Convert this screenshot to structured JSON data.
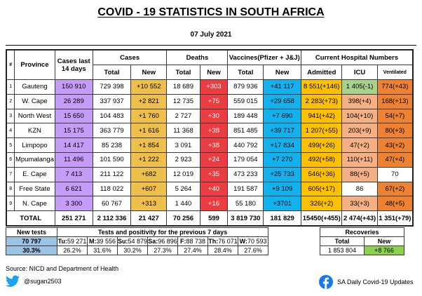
{
  "title": "COVID - 19 STATISTICS IN SOUTH AFRICA",
  "date": "07 July 2021",
  "headers": {
    "num": "#",
    "province": "Province",
    "cases14": "Cases last 14 days",
    "cases": "Cases",
    "deaths": "Deaths",
    "vaccines": "Vaccines(Pfizer + J&J)",
    "hospital": "Current Hospital Numbers",
    "total": "Total",
    "new": "New",
    "admitted": "Admitted",
    "icu": "ICU",
    "ventilated": "Ventilated"
  },
  "rows": [
    {
      "num": "1",
      "province": "Gauteng",
      "cases14": "150 910",
      "cases_total": "729 398",
      "cases_new": "+10 552",
      "deaths_total": "18 689",
      "deaths_new": "+303",
      "vacc_total": "879 936",
      "vacc_new": "+41 117",
      "admitted": "8 551(+146)",
      "icu": "1 405(-1)",
      "ventilated": "774(+43)"
    },
    {
      "num": "2",
      "province": "W. Cape",
      "cases14": "26 289",
      "cases_total": "337 937",
      "cases_new": "+2 821",
      "deaths_total": "12 735",
      "deaths_new": "+75",
      "vacc_total": "559 015",
      "vacc_new": "+29 658",
      "admitted": "2 283(+73)",
      "icu": "398(+4)",
      "ventilated": "168(+13)"
    },
    {
      "num": "3",
      "province": "North West",
      "cases14": "15 650",
      "cases_total": "104 483",
      "cases_new": "+1 760",
      "deaths_total": "2 727",
      "deaths_new": "+30",
      "vacc_total": "189 448",
      "vacc_new": "+7 690",
      "admitted": "941(+42)",
      "icu": "104(+10)",
      "ventilated": "54(+7)"
    },
    {
      "num": "4",
      "province": "KZN",
      "cases14": "15 175",
      "cases_total": "363 779",
      "cases_new": "+1 616",
      "deaths_total": "11 368",
      "deaths_new": "+38",
      "vacc_total": "851 485",
      "vacc_new": "+39 717",
      "admitted": "1 207(+55)",
      "icu": "203(+9)",
      "ventilated": "80(+3)"
    },
    {
      "num": "5",
      "province": "Limpopo",
      "cases14": "14 417",
      "cases_total": "85 238",
      "cases_new": "+1 854",
      "deaths_total": "3 091",
      "deaths_new": "+38",
      "vacc_total": "440 792",
      "vacc_new": "+17 834",
      "admitted": "499(+26)",
      "icu": "47(+2)",
      "ventilated": "43(+2)"
    },
    {
      "num": "6",
      "province": "Mpumalanga",
      "cases14": "11 496",
      "cases_total": "101 590",
      "cases_new": "+1 222",
      "deaths_total": "2 923",
      "deaths_new": "+24",
      "vacc_total": "179 054",
      "vacc_new": "+7 270",
      "admitted": "492(+58)",
      "icu": "110(+11)",
      "ventilated": "47(+4)"
    },
    {
      "num": "7",
      "province": "E. Cape",
      "cases14": "7 413",
      "cases_total": "211 122",
      "cases_new": "+682",
      "deaths_total": "12 019",
      "deaths_new": "+35",
      "vacc_total": "473 233",
      "vacc_new": "+25 733",
      "admitted": "546(+36)",
      "icu": "88(+5)",
      "ventilated": "70"
    },
    {
      "num": "8",
      "province": "Free State",
      "cases14": "6 621",
      "cases_total": "118 022",
      "cases_new": "+607",
      "deaths_total": "5 264",
      "deaths_new": "+40",
      "vacc_total": "191 587",
      "vacc_new": "+9 109",
      "admitted": "605(+17)",
      "icu": "86",
      "ventilated": "67(+2)"
    },
    {
      "num": "9",
      "province": "N. Cape",
      "cases14": "3 300",
      "cases_total": "60 767",
      "cases_new": "+313",
      "deaths_total": "1 440",
      "deaths_new": "+16",
      "vacc_total": "55 180",
      "vacc_new": "+3701",
      "admitted": "326(+2)",
      "icu": "33(+3)",
      "ventilated": "48(+5)"
    }
  ],
  "totals": {
    "label": "TOTAL",
    "cases14": "251 271",
    "cases_total": "2 112 336",
    "cases_new": "21 427",
    "deaths_total": "70 256",
    "deaths_new": "599",
    "vacc_total": "3 819 730",
    "vacc_new": "181 829",
    "admitted": "15450(+455)",
    "icu": "2 474(+43)",
    "ventilated": "1 351(+79)"
  },
  "tests": {
    "new_label": "New tests",
    "new_value": "70 797",
    "new_positivity": "30.3%",
    "period_label": "Tests and positivity for the previous 7 days",
    "days": [
      {
        "day": "Tu",
        "count": "59 271",
        "positivity": "26.2%"
      },
      {
        "day": "M",
        "count": "39 556",
        "positivity": "31.6%"
      },
      {
        "day": "Su",
        "count": "54 879",
        "positivity": "30.2%"
      },
      {
        "day": "Sa",
        "count": "96 896",
        "positivity": "27.3%"
      },
      {
        "day": "F",
        "count": "88 738",
        "positivity": "27.4%"
      },
      {
        "day": "Th",
        "count": "76 071",
        "positivity": "28.4%"
      },
      {
        "day": "W",
        "count": "70 593",
        "positivity": "27.6%"
      }
    ]
  },
  "recoveries": {
    "label": "Recoveries",
    "total_label": "Total",
    "new_label": "New",
    "total": "1 853 804",
    "new": "+8 766"
  },
  "footer": {
    "source": "Source: NICD and Department of Health",
    "twitter": "@sugan2503",
    "facebook": "SA Daily Covid-19 Updates",
    "twitter_icon": "twitter-bird-icon",
    "facebook_icon": "facebook-logo-icon"
  },
  "colors": {
    "cases14": "#c59cf7",
    "cases_new": "#efbf4c",
    "deaths_new": "#ea3c41",
    "vacc_new": "#13b2ee",
    "admitted": "#fdc102",
    "icu": "#f5b185",
    "icu_green": "#a9d18e",
    "ventilated": "#ee8233",
    "tests": "#9cc2e5",
    "recoveries_new": "#8bd14c"
  }
}
